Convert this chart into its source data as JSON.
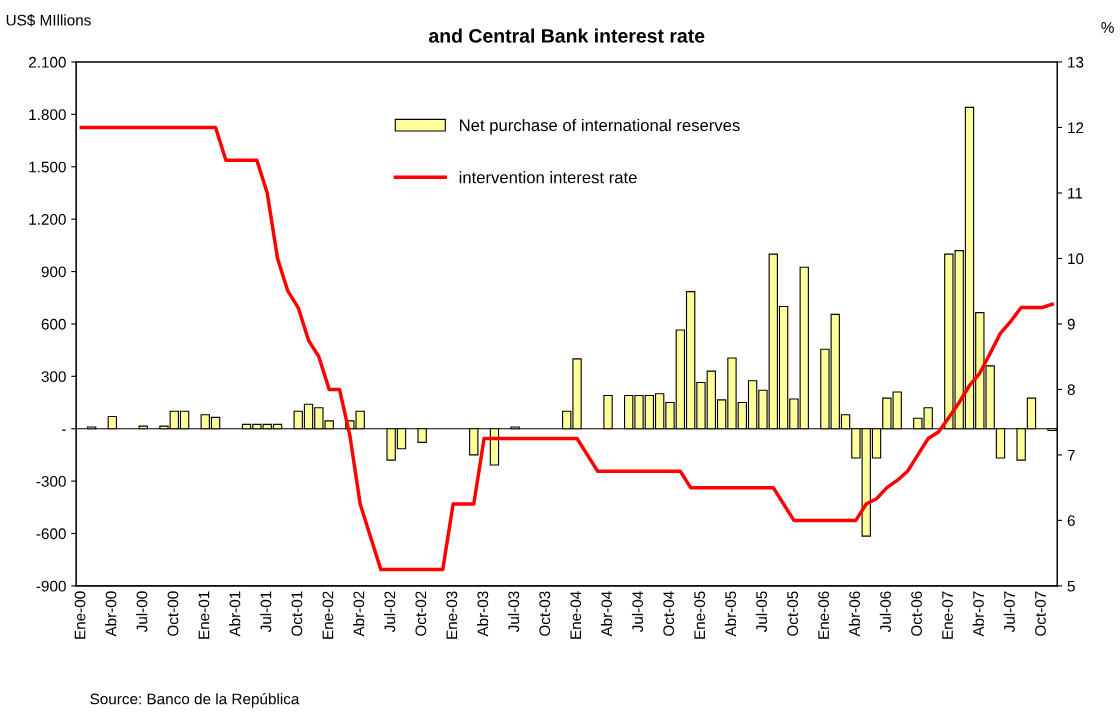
{
  "chart_data": {
    "type": "bar",
    "title": "and Central Bank interest rate",
    "ylabel": "US$ MIllions",
    "y2label": "%",
    "categories": [
      "Ene-00",
      null,
      null,
      "Abr-00",
      null,
      null,
      "Jul-00",
      null,
      null,
      "Oct-00",
      null,
      null,
      "Ene-01",
      null,
      null,
      "Abr-01",
      null,
      null,
      "Jul-01",
      null,
      null,
      "Oct-01",
      null,
      null,
      "Ene-02",
      null,
      null,
      "Abr-02",
      null,
      null,
      "Jul-02",
      null,
      null,
      "Oct-02",
      null,
      null,
      "Ene-03",
      null,
      null,
      "Abr-03",
      null,
      null,
      "Jul-03",
      null,
      null,
      "Oct-03",
      null,
      null,
      "Ene-04",
      null,
      null,
      "Abr-04",
      null,
      null,
      "Jul-04",
      null,
      null,
      "Oct-04",
      null,
      null,
      "Ene-05",
      null,
      null,
      "Abr-05",
      null,
      null,
      "Jul-05",
      null,
      null,
      "Oct-05",
      null,
      null,
      "Ene-06",
      null,
      null,
      "Abr-06",
      null,
      null,
      "Jul-06",
      null,
      null,
      "Oct-06",
      null,
      null,
      "Ene-07",
      null,
      null,
      "Abr-07",
      null,
      null,
      "Jul-07",
      null,
      null,
      "Oct-07",
      null
    ],
    "series": [
      {
        "name": "Net purchase of international reserves",
        "color": "#ffff99",
        "values": [
          null,
          10,
          null,
          70,
          null,
          null,
          15,
          null,
          15,
          100,
          100,
          null,
          80,
          65,
          null,
          null,
          25,
          25,
          25,
          25,
          null,
          100,
          140,
          120,
          45,
          null,
          45,
          100,
          null,
          null,
          -180,
          -115,
          null,
          -78,
          null,
          null,
          null,
          null,
          -150,
          null,
          -208,
          null,
          10,
          null,
          null,
          null,
          null,
          100,
          400,
          null,
          null,
          190,
          null,
          190,
          190,
          190,
          200,
          150,
          565,
          785,
          265,
          330,
          165,
          405,
          150,
          275,
          220,
          1000,
          700,
          170,
          925,
          null,
          455,
          655,
          80,
          -168,
          -615,
          -168,
          175,
          210,
          null,
          60,
          120,
          null,
          1000,
          1020,
          1840,
          665,
          360,
          -168,
          null,
          -180,
          175,
          null,
          -10
        ]
      },
      {
        "name": "intervention interest rate",
        "type": "line",
        "axis": "y2",
        "color": "#ff0000",
        "values": [
          12,
          12,
          12,
          12,
          12,
          12,
          12,
          12,
          12,
          12,
          12,
          12,
          12,
          12,
          11.5,
          11.5,
          11.5,
          11.5,
          11,
          10,
          9.5,
          9.25,
          8.75,
          8.5,
          8,
          8,
          7.3,
          6.25,
          5.75,
          5.25,
          5.25,
          5.25,
          5.25,
          5.25,
          5.25,
          5.25,
          6.25,
          6.25,
          6.25,
          7.25,
          7.25,
          7.25,
          7.25,
          7.25,
          7.25,
          7.25,
          7.25,
          7.25,
          7.25,
          7,
          6.75,
          6.75,
          6.75,
          6.75,
          6.75,
          6.75,
          6.75,
          6.75,
          6.75,
          6.5,
          6.5,
          6.5,
          6.5,
          6.5,
          6.5,
          6.5,
          6.5,
          6.5,
          6.25,
          6,
          6,
          6,
          6,
          6,
          6,
          6,
          6.25,
          6.33,
          6.5,
          6.61,
          6.75,
          7,
          7.25,
          7.35,
          7.57,
          7.8,
          8.06,
          8.25,
          8.55,
          8.86,
          9.04,
          9.25,
          9.25,
          9.25,
          9.3
        ]
      }
    ],
    "ylim": [
      -900,
      2100
    ],
    "yticks": [
      -900,
      -600,
      -300,
      {
        "value": 0,
        "label": "-"
      },
      300,
      600,
      900,
      {
        "value": 1200,
        "label": "1.200"
      },
      {
        "value": 1500,
        "label": "1.500"
      },
      {
        "value": 1800,
        "label": "1.800"
      },
      {
        "value": 2100,
        "label": "2.100"
      }
    ],
    "y2lim": [
      5,
      13
    ],
    "y2ticks": [
      5,
      6,
      7,
      8,
      9,
      10,
      11,
      12,
      13
    ],
    "legend": "top",
    "ref_lines": [
      {
        "axis": "y",
        "value": 0,
        "color": "#000000"
      }
    ],
    "annotations": [
      "Source: Banco de la República"
    ]
  }
}
